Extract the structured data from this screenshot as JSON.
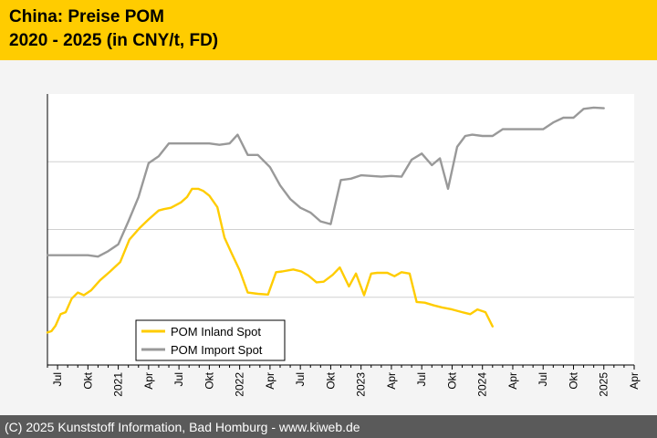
{
  "header": {
    "title_line1": "China: Preise POM",
    "title_line2": "2020 - 2025 (in CNY/t, FD)",
    "background_color": "#ffcc00"
  },
  "footer": {
    "text": "(C) 2025 Kunststoff Information, Bad Homburg - www.kiweb.de",
    "background_color": "#5a5a5a"
  },
  "chart_data": {
    "type": "line",
    "title": "China: Preise POM 2020 - 2025 (in CNY/t, FD)",
    "xlabel": "",
    "ylabel": "",
    "x_start_month": "2020-06",
    "x_end_month": "2025-04",
    "x_tick_labels": [
      "Jul",
      "Okt",
      "2021",
      "Apr",
      "Jul",
      "Okt",
      "2022",
      "Apr",
      "Jul",
      "Okt",
      "2023",
      "Apr",
      "Jul",
      "Okt",
      "2024",
      "Apr",
      "Jul",
      "Okt",
      "2025",
      "Apr"
    ],
    "ylim": [
      0,
      4
    ],
    "y_gridlines": [
      1,
      2,
      3
    ],
    "y_tick_labels_shown": false,
    "legend_position": "bottom-left",
    "series": [
      {
        "name": "POM Inland Spot",
        "color": "#ffcc00",
        "points": [
          [
            0,
            0.48
          ],
          [
            0.4,
            0.5
          ],
          [
            0.8,
            0.58
          ],
          [
            1.3,
            0.75
          ],
          [
            1.8,
            0.78
          ],
          [
            2.4,
            0.98
          ],
          [
            3.0,
            1.07
          ],
          [
            3.6,
            1.03
          ],
          [
            4.3,
            1.1
          ],
          [
            5.2,
            1.25
          ],
          [
            6.2,
            1.38
          ],
          [
            7.2,
            1.52
          ],
          [
            8.1,
            1.85
          ],
          [
            9.1,
            2.02
          ],
          [
            10.0,
            2.15
          ],
          [
            11.0,
            2.28
          ],
          [
            11.5,
            2.3
          ],
          [
            12.2,
            2.32
          ],
          [
            13.2,
            2.4
          ],
          [
            13.8,
            2.48
          ],
          [
            14.3,
            2.6
          ],
          [
            14.9,
            2.6
          ],
          [
            15.4,
            2.57
          ],
          [
            16.0,
            2.5
          ],
          [
            16.8,
            2.33
          ],
          [
            17.5,
            1.88
          ],
          [
            18.2,
            1.65
          ],
          [
            19.0,
            1.4
          ],
          [
            19.8,
            1.07
          ],
          [
            20.8,
            1.05
          ],
          [
            21.8,
            1.04
          ],
          [
            22.6,
            1.37
          ],
          [
            23.2,
            1.38
          ],
          [
            24.3,
            1.41
          ],
          [
            25.1,
            1.38
          ],
          [
            25.8,
            1.32
          ],
          [
            26.6,
            1.22
          ],
          [
            27.3,
            1.23
          ],
          [
            28.2,
            1.33
          ],
          [
            28.9,
            1.44
          ],
          [
            29.8,
            1.16
          ],
          [
            30.5,
            1.35
          ],
          [
            31.3,
            1.03
          ],
          [
            32.0,
            1.35
          ],
          [
            32.6,
            1.36
          ],
          [
            33.6,
            1.36
          ],
          [
            34.3,
            1.31
          ],
          [
            35.0,
            1.37
          ],
          [
            35.8,
            1.35
          ],
          [
            36.5,
            0.93
          ],
          [
            37.3,
            0.92
          ],
          [
            38.2,
            0.88
          ],
          [
            39.0,
            0.85
          ],
          [
            40.0,
            0.82
          ],
          [
            41.0,
            0.78
          ],
          [
            41.8,
            0.75
          ],
          [
            42.5,
            0.82
          ],
          [
            43.3,
            0.78
          ],
          [
            44.0,
            0.57
          ]
        ]
      },
      {
        "name": "POM Import Spot",
        "color": "#999999",
        "points": [
          [
            0,
            1.62
          ],
          [
            1.0,
            1.62
          ],
          [
            2.0,
            1.62
          ],
          [
            3.0,
            1.62
          ],
          [
            4.0,
            1.62
          ],
          [
            5.0,
            1.6
          ],
          [
            6.0,
            1.68
          ],
          [
            7.0,
            1.78
          ],
          [
            8.0,
            2.12
          ],
          [
            9.0,
            2.48
          ],
          [
            10.0,
            2.98
          ],
          [
            11.0,
            3.08
          ],
          [
            12.0,
            3.27
          ],
          [
            13.0,
            3.27
          ],
          [
            14.0,
            3.27
          ],
          [
            15.0,
            3.27
          ],
          [
            16.0,
            3.27
          ],
          [
            17.0,
            3.25
          ],
          [
            18.0,
            3.27
          ],
          [
            18.8,
            3.4
          ],
          [
            19.8,
            3.1
          ],
          [
            20.8,
            3.1
          ],
          [
            22.0,
            2.92
          ],
          [
            23.0,
            2.65
          ],
          [
            24.0,
            2.45
          ],
          [
            25.0,
            2.32
          ],
          [
            26.0,
            2.25
          ],
          [
            27.0,
            2.12
          ],
          [
            28.0,
            2.08
          ],
          [
            29.0,
            2.73
          ],
          [
            30.0,
            2.75
          ],
          [
            31.0,
            2.8
          ],
          [
            32.0,
            2.79
          ],
          [
            33.0,
            2.78
          ],
          [
            34.0,
            2.79
          ],
          [
            35.0,
            2.78
          ],
          [
            36.0,
            3.03
          ],
          [
            37.0,
            3.12
          ],
          [
            38.0,
            2.95
          ],
          [
            38.8,
            3.05
          ],
          [
            39.6,
            2.6
          ],
          [
            40.5,
            3.22
          ],
          [
            41.3,
            3.38
          ],
          [
            42.0,
            3.4
          ],
          [
            43.0,
            3.38
          ],
          [
            44.0,
            3.38
          ],
          [
            45.0,
            3.48
          ],
          [
            46.0,
            3.48
          ],
          [
            47.0,
            3.48
          ],
          [
            48.0,
            3.48
          ],
          [
            49.0,
            3.48
          ],
          [
            50.0,
            3.58
          ],
          [
            51.0,
            3.65
          ],
          [
            52.0,
            3.65
          ],
          [
            53.0,
            3.78
          ],
          [
            54.0,
            3.8
          ],
          [
            55.0,
            3.79
          ]
        ]
      }
    ]
  }
}
